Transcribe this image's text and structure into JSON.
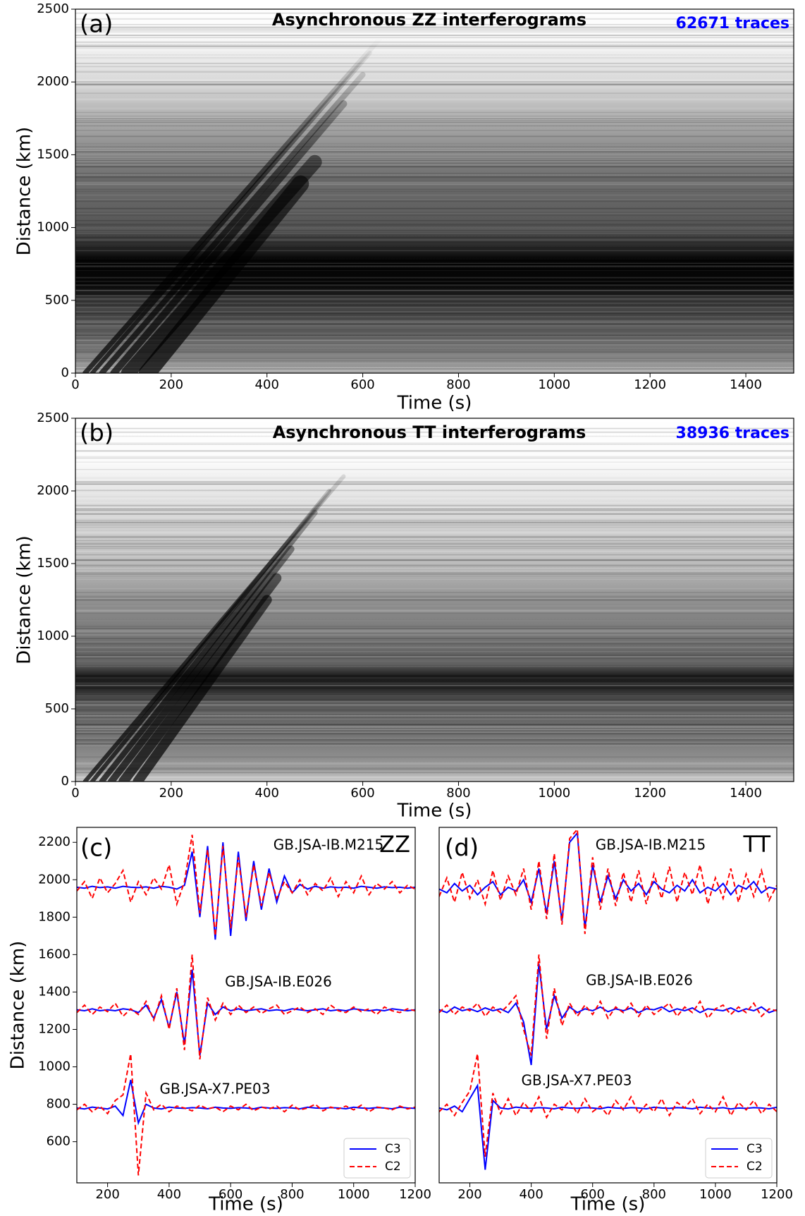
{
  "chart_data": [
    {
      "type": "image",
      "panel_label": "(a)",
      "title": "Asynchronous ZZ interferograms",
      "trace_count": "62671 traces",
      "count_color": "#0000ff",
      "xlabel": "Time (s)",
      "ylabel": "Distance (km)",
      "xlim": [
        0,
        1500
      ],
      "ylim": [
        0,
        2500
      ],
      "xticks": [
        0,
        200,
        400,
        600,
        800,
        1000,
        1200,
        1400
      ],
      "yticks": [
        0,
        500,
        1000,
        1500,
        2000,
        2500
      ]
    },
    {
      "type": "image",
      "panel_label": "(b)",
      "title": "Asynchronous TT interferograms",
      "trace_count": "38936 traces",
      "count_color": "#0000ff",
      "xlabel": "Time (s)",
      "ylabel": "Distance (km)",
      "xlim": [
        0,
        1500
      ],
      "ylim": [
        0,
        2500
      ],
      "xticks": [
        0,
        200,
        400,
        600,
        800,
        1000,
        1200,
        1400
      ],
      "yticks": [
        0,
        500,
        1000,
        1500,
        2000,
        2500
      ]
    },
    {
      "type": "line",
      "panel_label": "(c)",
      "component": "ZZ",
      "stations": [
        "GB.JSA-IB.M215",
        "GB.JSA-IB.E026",
        "GB.JSA-X7.PE03"
      ],
      "xlabel": "Time (s)",
      "ylabel": "Distance (km)",
      "xlim": [
        100,
        1200
      ],
      "ylim": [
        380,
        2280
      ],
      "xticks": [
        200,
        400,
        600,
        800,
        1000,
        1200
      ],
      "yticks": [
        600,
        800,
        1000,
        1200,
        1400,
        1600,
        1800,
        2000,
        2200
      ],
      "legend": "lower right",
      "x": [
        100,
        125,
        150,
        175,
        200,
        225,
        250,
        275,
        300,
        325,
        350,
        375,
        400,
        425,
        450,
        475,
        500,
        525,
        550,
        575,
        600,
        625,
        650,
        675,
        700,
        725,
        750,
        775,
        800,
        825,
        850,
        875,
        900,
        925,
        950,
        975,
        1000,
        1025,
        1050,
        1075,
        1100,
        1125,
        1150,
        1175,
        1200,
        null,
        100,
        125,
        150,
        175,
        200,
        225,
        250,
        275,
        300,
        325,
        350,
        375,
        400,
        425,
        450,
        475,
        500,
        525,
        550,
        575,
        600,
        625,
        650,
        675,
        700,
        725,
        750,
        775,
        800,
        825,
        850,
        875,
        900,
        925,
        950,
        975,
        1000,
        1025,
        1050,
        1075,
        1100,
        1125,
        1150,
        1175,
        1200,
        null,
        100,
        125,
        150,
        175,
        200,
        225,
        250,
        275,
        300,
        325,
        350,
        375,
        400,
        425,
        450,
        475,
        500,
        525,
        550,
        575,
        600,
        625,
        650,
        675,
        700,
        725,
        750,
        775,
        800,
        825,
        850,
        875,
        900,
        925,
        950,
        975,
        1000,
        1025,
        1050,
        1075,
        1100,
        1125,
        1150,
        1175,
        1200
      ],
      "series": [
        {
          "name": "C3",
          "color": "#0000ff",
          "style": "solid",
          "values": [
            1960,
            1955,
            1965,
            1958,
            1962,
            1955,
            1965,
            1960,
            1958,
            1962,
            1955,
            1965,
            1960,
            1950,
            1970,
            2150,
            1800,
            2180,
            1680,
            2200,
            1700,
            2150,
            1780,
            2100,
            1840,
            2060,
            1880,
            2020,
            1930,
            1975,
            1950,
            1965,
            1955,
            1962,
            1958,
            1960,
            1955,
            1965,
            1960,
            1955,
            1962,
            1958,
            1960,
            1955,
            1960,
            null,
            1305,
            1300,
            1310,
            1300,
            1305,
            1300,
            1310,
            1305,
            1290,
            1330,
            1260,
            1360,
            1210,
            1400,
            1120,
            1520,
            1060,
            1340,
            1280,
            1320,
            1300,
            1310,
            1300,
            1305,
            1310,
            1300,
            1305,
            1300,
            1310,
            1305,
            1300,
            1305,
            1310,
            1300,
            1305,
            1300,
            1310,
            1305,
            1300,
            1305,
            1300,
            1310,
            1305,
            1300,
            1305,
            null,
            780,
            775,
            785,
            780,
            775,
            790,
            740,
            930,
            700,
            800,
            780,
            775,
            785,
            780,
            778,
            782,
            780,
            776,
            784,
            780,
            778,
            782,
            780,
            776,
            784,
            780,
            778,
            782,
            780,
            776,
            784,
            780,
            778,
            782,
            780,
            776,
            784,
            780,
            778,
            782,
            780,
            776,
            784,
            780,
            778
          ]
        },
        {
          "name": "C2",
          "color": "#ff0000",
          "style": "dashed",
          "values": [
            1940,
            1990,
            1900,
            2010,
            1930,
            1980,
            2050,
            1880,
            1990,
            1920,
            2010,
            1950,
            2080,
            1870,
            1990,
            2240,
            1820,
            2160,
            1700,
            2180,
            1740,
            2120,
            1800,
            2080,
            1860,
            2040,
            1900,
            1990,
            1930,
            2000,
            1920,
            1980,
            1940,
            2010,
            1910,
            1990,
            1930,
            2020,
            1920,
            1980,
            1950,
            1990,
            1930,
            1970,
            1950,
            null,
            1290,
            1330,
            1280,
            1320,
            1295,
            1340,
            1270,
            1310,
            1280,
            1350,
            1250,
            1380,
            1200,
            1420,
            1090,
            1600,
            1040,
            1370,
            1250,
            1340,
            1280,
            1330,
            1290,
            1320,
            1285,
            1310,
            1330,
            1280,
            1300,
            1320,
            1290,
            1310,
            1280,
            1330,
            1300,
            1290,
            1320,
            1295,
            1310,
            1280,
            1320,
            1300,
            1290,
            1310,
            1300,
            null,
            770,
            800,
            760,
            790,
            750,
            820,
            850,
            1070,
            420,
            860,
            770,
            800,
            760,
            790,
            780,
            765,
            795,
            775,
            785,
            760,
            790,
            770,
            800,
            765,
            785,
            775,
            790,
            760,
            795,
            770,
            780,
            800,
            765,
            785,
            775,
            790,
            770,
            795,
            760,
            785,
            780,
            770,
            790,
            775,
            785
          ]
        }
      ]
    },
    {
      "type": "line",
      "panel_label": "(d)",
      "component": "TT",
      "stations": [
        "GB.JSA-IB.M215",
        "GB.JSA-IB.E026",
        "GB.JSA-X7.PE03"
      ],
      "xlabel": "Time (s)",
      "xlim": [
        100,
        1200
      ],
      "ylim": [
        380,
        2280
      ],
      "xticks": [
        200,
        400,
        600,
        800,
        1000,
        1200
      ],
      "legend": "lower right",
      "x": [
        100,
        125,
        150,
        175,
        200,
        225,
        250,
        275,
        300,
        325,
        350,
        375,
        400,
        425,
        450,
        475,
        500,
        525,
        550,
        575,
        600,
        625,
        650,
        675,
        700,
        725,
        750,
        775,
        800,
        825,
        850,
        875,
        900,
        925,
        950,
        975,
        1000,
        1025,
        1050,
        1075,
        1100,
        1125,
        1150,
        1175,
        1200,
        null,
        100,
        125,
        150,
        175,
        200,
        225,
        250,
        275,
        300,
        325,
        350,
        375,
        400,
        425,
        450,
        475,
        500,
        525,
        550,
        575,
        600,
        625,
        650,
        675,
        700,
        725,
        750,
        775,
        800,
        825,
        850,
        875,
        900,
        925,
        950,
        975,
        1000,
        1025,
        1050,
        1075,
        1100,
        1125,
        1150,
        1175,
        1200,
        null,
        100,
        125,
        150,
        175,
        200,
        225,
        250,
        275,
        300,
        325,
        350,
        375,
        400,
        425,
        450,
        475,
        500,
        525,
        550,
        575,
        600,
        625,
        650,
        675,
        700,
        725,
        750,
        775,
        800,
        825,
        850,
        875,
        900,
        925,
        950,
        975,
        1000,
        1025,
        1050,
        1075,
        1100,
        1125,
        1150,
        1175,
        1200
      ],
      "series": [
        {
          "name": "C3",
          "color": "#0000ff",
          "style": "solid",
          "values": [
            1950,
            1930,
            1980,
            1940,
            1970,
            1920,
            1960,
            1990,
            1920,
            1960,
            1940,
            2000,
            1880,
            2060,
            1820,
            2100,
            1780,
            2200,
            2250,
            1740,
            2080,
            1880,
            2020,
            1900,
            2000,
            1940,
            1980,
            1920,
            1990,
            1950,
            1930,
            1970,
            1940,
            2000,
            1930,
            1960,
            1940,
            1980,
            1920,
            1970,
            1950,
            1990,
            1930,
            1960,
            1950,
            null,
            1305,
            1290,
            1320,
            1300,
            1310,
            1295,
            1315,
            1300,
            1310,
            1290,
            1340,
            1240,
            1010,
            1550,
            1200,
            1380,
            1260,
            1320,
            1290,
            1310,
            1300,
            1320,
            1295,
            1310,
            1300,
            1315,
            1290,
            1310,
            1305,
            1320,
            1295,
            1310,
            1300,
            1315,
            1290,
            1310,
            1305,
            1300,
            1315,
            1295,
            1310,
            1300,
            1320,
            1290,
            1305,
            null,
            780,
            770,
            790,
            760,
            830,
            900,
            450,
            820,
            780,
            775,
            785,
            780,
            778,
            782,
            780,
            776,
            784,
            780,
            778,
            782,
            780,
            776,
            784,
            780,
            778,
            782,
            780,
            776,
            784,
            780,
            778,
            782,
            780,
            776,
            784,
            780,
            778,
            782,
            775,
            780,
            778,
            782,
            780,
            776,
            784
          ]
        },
        {
          "name": "C2",
          "color": "#ff0000",
          "style": "dashed",
          "values": [
            1910,
            2010,
            1880,
            2040,
            1900,
            2000,
            1870,
            2050,
            1890,
            2020,
            1920,
            2060,
            1840,
            2100,
            1790,
            2140,
            1760,
            2220,
            2270,
            1710,
            2120,
            1840,
            2060,
            1860,
            2040,
            1880,
            2050,
            1870,
            2030,
            1900,
            2070,
            1880,
            2040,
            1920,
            2080,
            1870,
            2010,
            1900,
            2060,
            1880,
            2030,
            1910,
            2050,
            1890,
            1970,
            null,
            1290,
            1330,
            1280,
            1320,
            1300,
            1340,
            1270,
            1320,
            1290,
            1330,
            1380,
            1200,
            1060,
            1600,
            1150,
            1420,
            1220,
            1340,
            1270,
            1330,
            1280,
            1350,
            1260,
            1320,
            1290,
            1340,
            1270,
            1330,
            1280,
            1310,
            1340,
            1270,
            1320,
            1290,
            1350,
            1260,
            1310,
            1330,
            1280,
            1320,
            1290,
            1340,
            1270,
            1310,
            1300,
            null,
            760,
            800,
            740,
            810,
            870,
            1070,
            520,
            860,
            750,
            830,
            740,
            810,
            760,
            840,
            730,
            800,
            770,
            820,
            750,
            830,
            760,
            790,
            740,
            820,
            770,
            840,
            750,
            800,
            760,
            830,
            740,
            810,
            780,
            830,
            750,
            800,
            760,
            840,
            740,
            810,
            770,
            820,
            750,
            800,
            760
          ]
        }
      ]
    }
  ]
}
